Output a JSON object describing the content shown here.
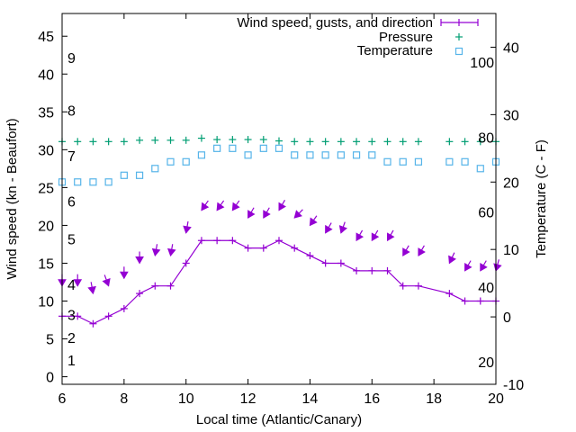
{
  "chart_data": {
    "type": "line",
    "title": "",
    "xlabel": "Local time (Atlantic/Canary)",
    "ylabel": "Wind speed (kn - Beaufort)",
    "y2label": "Temperature (C - F)",
    "xlim": [
      6,
      20
    ],
    "ylim": [
      -1,
      48
    ],
    "y2lim": [
      -10,
      45
    ],
    "grid": false,
    "legend_position": "top-right",
    "x_ticks": [
      6,
      8,
      10,
      12,
      14,
      16,
      18,
      20
    ],
    "y_ticks": [
      0,
      5,
      10,
      15,
      20,
      25,
      30,
      35,
      40,
      45
    ],
    "y2_ticks": [
      -10,
      0,
      10,
      20,
      30,
      40
    ],
    "beaufort_labels": [
      {
        "label": "1",
        "kn": 1
      },
      {
        "label": "2",
        "kn": 4
      },
      {
        "label": "3",
        "kn": 7
      },
      {
        "label": "4",
        "kn": 11
      },
      {
        "label": "5",
        "kn": 17
      },
      {
        "label": "6",
        "kn": 22
      },
      {
        "label": "7",
        "kn": 28
      },
      {
        "label": "8",
        "kn": 34
      },
      {
        "label": "9",
        "kn": 41
      }
    ],
    "fahrenheit_labels": [
      {
        "label": "20",
        "f": 20
      },
      {
        "label": "40",
        "f": 40
      },
      {
        "label": "60",
        "f": 60
      },
      {
        "label": "80",
        "f": 80
      },
      {
        "label": "100",
        "f": 100
      }
    ],
    "series": [
      {
        "name": "Wind speed, gusts, and direction",
        "axis": "left",
        "color": "#9400d3",
        "x": [
          6,
          6.5,
          7,
          7.5,
          8,
          8.5,
          9,
          9.5,
          10,
          10.5,
          11,
          11.5,
          12,
          12.5,
          13,
          13.5,
          14,
          14.5,
          15,
          15.5,
          16,
          16.5,
          17,
          17.5,
          18.5,
          19,
          19.5,
          20
        ],
        "speed": [
          8,
          8,
          7,
          8,
          9,
          11,
          12,
          12,
          15,
          18,
          18,
          18,
          17,
          17,
          18,
          17,
          16,
          15,
          15,
          14,
          14,
          14,
          12,
          12,
          11,
          10,
          10,
          10
        ],
        "gusts": [
          12,
          12,
          11,
          12,
          13,
          15,
          16,
          16,
          19,
          22,
          22,
          22,
          21,
          21,
          22,
          21,
          20,
          19,
          19,
          18,
          18,
          18,
          16,
          16,
          15,
          14,
          14,
          14
        ],
        "direction_deg": [
          0,
          0,
          350,
          340,
          0,
          0,
          10,
          10,
          10,
          35,
          35,
          35,
          30,
          30,
          30,
          45,
          35,
          30,
          20,
          30,
          30,
          30,
          30,
          30,
          25,
          30,
          30,
          15
        ]
      },
      {
        "name": "Pressure",
        "axis": "right",
        "color": "#009e73",
        "x": [
          6,
          6.5,
          7,
          7.5,
          8,
          8.5,
          9,
          9.5,
          10,
          10.5,
          11,
          11.5,
          12,
          12.5,
          13,
          13.5,
          14,
          14.5,
          15,
          15.5,
          16,
          16.5,
          17,
          17.5,
          18.5,
          19,
          19.5,
          20
        ],
        "values": [
          26.0,
          26.0,
          26.0,
          26.0,
          26.0,
          26.2,
          26.2,
          26.2,
          26.2,
          26.5,
          26.3,
          26.3,
          26.3,
          26.3,
          26.1,
          26.0,
          26.0,
          26.0,
          26.0,
          26.0,
          26.0,
          26.0,
          26.0,
          26.0,
          26.0,
          26.0,
          26.0,
          26.0
        ]
      },
      {
        "name": "Temperature",
        "axis": "right",
        "color": "#56b4e9",
        "x": [
          6,
          6.5,
          7,
          7.5,
          8,
          8.5,
          9,
          9.5,
          10,
          10.5,
          11,
          11.5,
          12,
          12.5,
          13,
          13.5,
          14,
          14.5,
          15,
          15.5,
          16,
          16.5,
          17,
          17.5,
          18.5,
          19,
          19.5,
          20
        ],
        "values": [
          20,
          20,
          20,
          20,
          21,
          21,
          22,
          23,
          23,
          24,
          25,
          25,
          24,
          25,
          25,
          24,
          24,
          24,
          24,
          24,
          24,
          23,
          23,
          23,
          23,
          23,
          22,
          23
        ]
      }
    ]
  }
}
